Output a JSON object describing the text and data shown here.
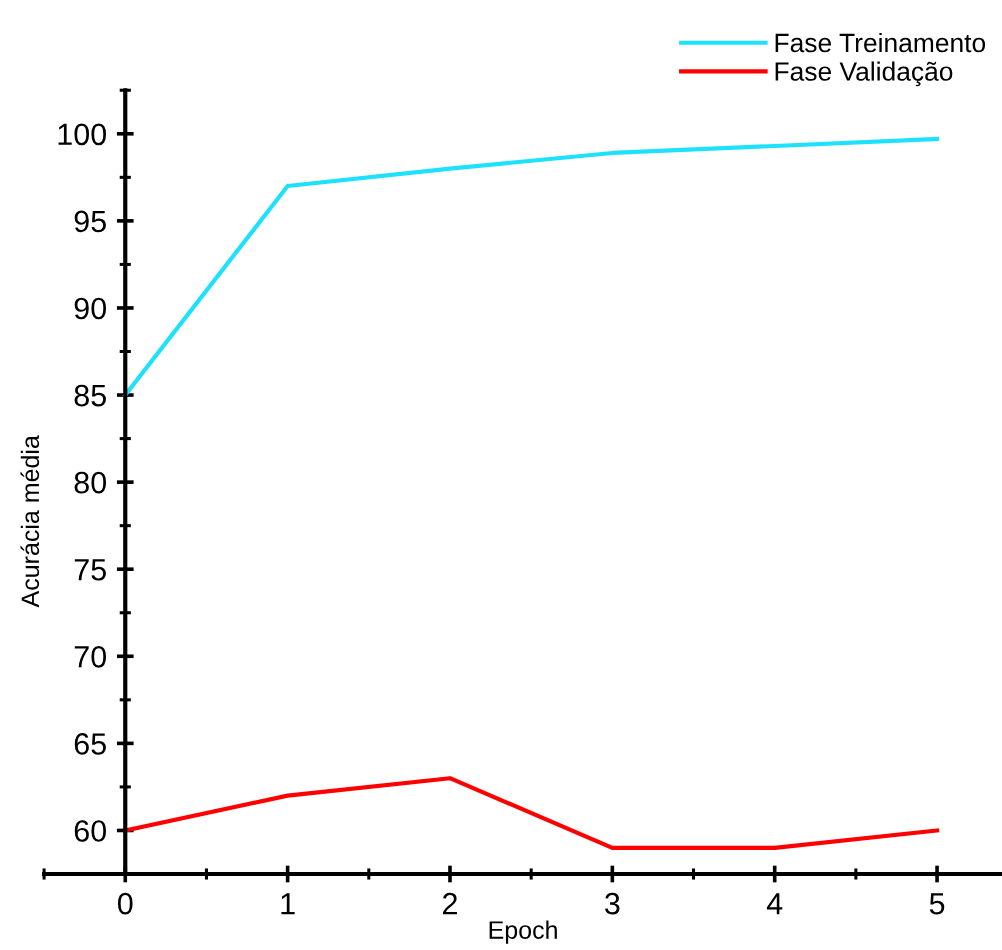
{
  "chart_data": {
    "type": "line",
    "xlabel": "Epoch",
    "ylabel": "Acurácia média",
    "x": [
      0,
      1,
      2,
      3,
      4,
      5
    ],
    "series": [
      {
        "name": "Fase Treinamento",
        "color": "#1ee0ff",
        "values": [
          85,
          97,
          98,
          98.9,
          99.3,
          99.7
        ]
      },
      {
        "name": "Fase Validação",
        "color": "#ff0000",
        "values": [
          60,
          62,
          63,
          59,
          59,
          60
        ]
      }
    ],
    "xlim": [
      -0.5,
      5.4
    ],
    "xticks": [
      0,
      1,
      2,
      3,
      4,
      5
    ],
    "ylim": [
      57.5,
      102.5
    ],
    "yticks": [
      60,
      65,
      70,
      75,
      80,
      85,
      90,
      95,
      100
    ],
    "legend": "top right",
    "grid": false,
    "line_style": "solid"
  }
}
